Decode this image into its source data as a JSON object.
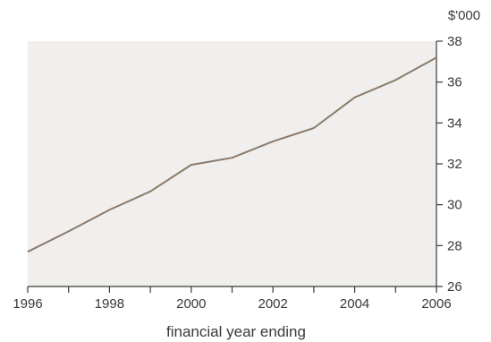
{
  "chart_data": {
    "type": "line",
    "title": "",
    "xlabel": "financial year ending",
    "ylabel": "$'000",
    "xlim": [
      1996,
      2006
    ],
    "ylim": [
      26,
      38
    ],
    "x_ticks": [
      1996,
      1997,
      1998,
      1999,
      2000,
      2001,
      2002,
      2003,
      2004,
      2005,
      2006
    ],
    "x_tick_labels": [
      "1996",
      "",
      "1998",
      "",
      "2000",
      "",
      "2002",
      "",
      "2004",
      "",
      "2006"
    ],
    "y_ticks": [
      26,
      28,
      30,
      32,
      34,
      36,
      38
    ],
    "y_tick_labels": [
      "26",
      "28",
      "30",
      "32",
      "34",
      "36",
      "38"
    ],
    "y_axis_side": "right",
    "grid": false,
    "legend": "none",
    "colors": {
      "plot_background": "#f1efed",
      "line": "#8b7b6c",
      "axis": "#3a3a3a"
    },
    "series": [
      {
        "x": [
          1996,
          1997,
          1998,
          1999,
          2000,
          2001,
          2002,
          2003,
          2004,
          2005,
          2006
        ],
        "values": [
          27.7,
          28.7,
          29.75,
          30.65,
          31.95,
          32.3,
          33.1,
          33.75,
          35.25,
          36.1,
          37.2
        ]
      }
    ]
  }
}
